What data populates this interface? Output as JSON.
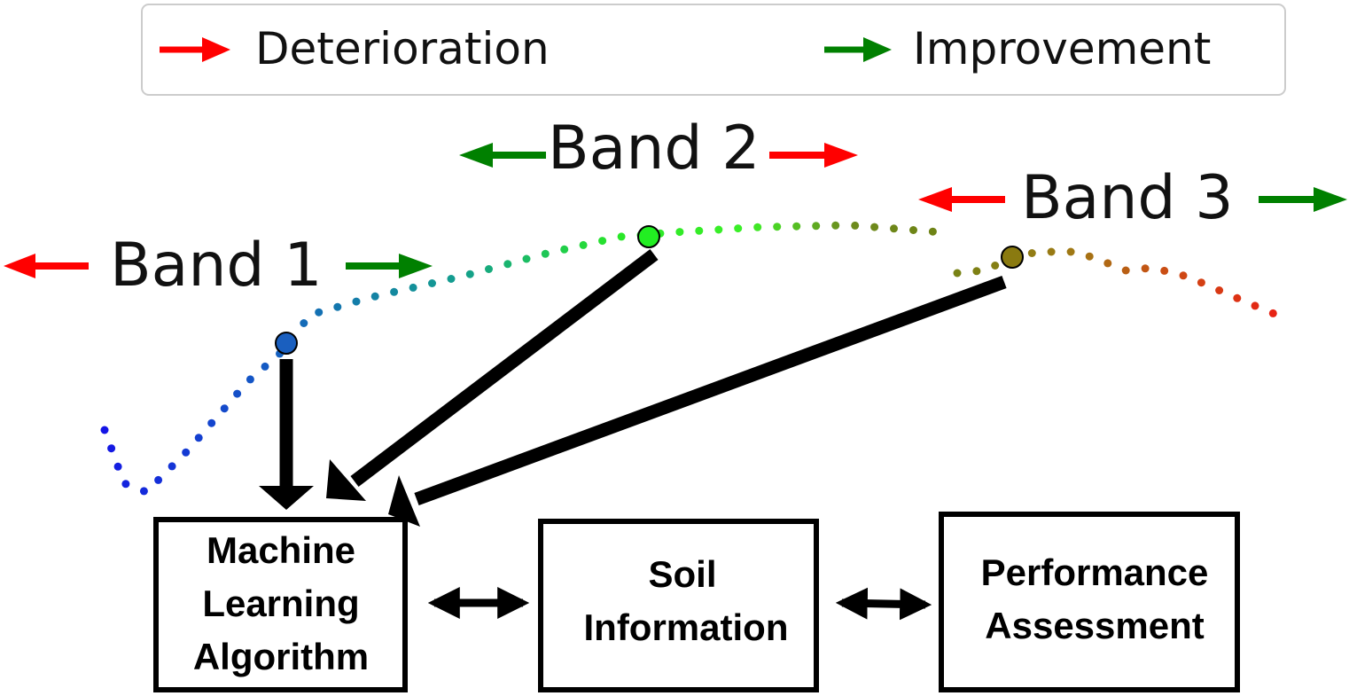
{
  "legend": {
    "deterioration": {
      "label": "Deterioration",
      "color": "#ff0000"
    },
    "improvement": {
      "label": "Improvement",
      "color": "#008000"
    }
  },
  "bands": [
    {
      "label": "Band 1",
      "left_arrow_color": "#ff0000",
      "right_arrow_color": "#008000"
    },
    {
      "label": "Band 2",
      "left_arrow_color": "#008000",
      "right_arrow_color": "#ff0000"
    },
    {
      "label": "Band 3",
      "left_arrow_color": "#ff0000",
      "right_arrow_color": "#008000"
    }
  ],
  "boxes": {
    "machine_learning": {
      "line1": "Machine",
      "line2": "Learning",
      "line3": "Algorithm"
    },
    "soil_information": {
      "line1": "Soil",
      "line2": "Information"
    },
    "performance_assessment": {
      "line1": "Performance",
      "line2": "Assessment"
    }
  }
}
